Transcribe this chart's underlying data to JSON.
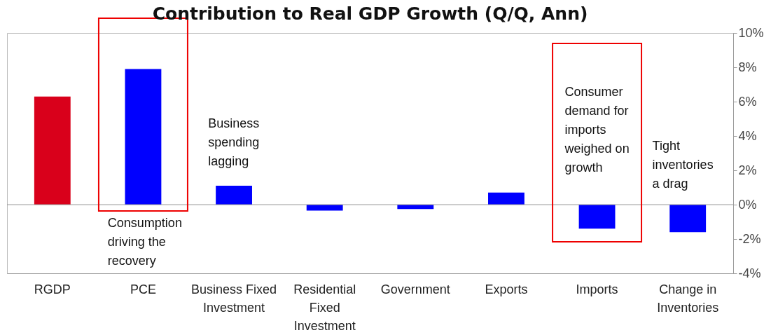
{
  "chart_data": {
    "type": "bar",
    "title": "Contribution to Real GDP Growth (Q/Q, Ann)",
    "categories": [
      "RGDP",
      "PCE",
      "Business Fixed Investment",
      "Residential Fixed Investment",
      "Government",
      "Exports",
      "Imports",
      "Change in Inventories"
    ],
    "values": [
      6.3,
      7.9,
      1.1,
      -0.35,
      -0.25,
      0.7,
      -1.4,
      -1.6
    ],
    "colors": [
      "#d9001b",
      "#0000ff",
      "#0000ff",
      "#0000ff",
      "#0000ff",
      "#0000ff",
      "#0000ff",
      "#0000ff"
    ],
    "ylim": [
      -4,
      10
    ],
    "yticks": [
      {
        "value": -4,
        "label": "-4%"
      },
      {
        "value": -2,
        "label": "-2%"
      },
      {
        "value": 0,
        "label": "0%"
      },
      {
        "value": 2,
        "label": "2%"
      },
      {
        "value": 4,
        "label": "4%"
      },
      {
        "value": 6,
        "label": "6%"
      },
      {
        "value": 8,
        "label": "8%"
      },
      {
        "value": 10,
        "label": "10%"
      }
    ],
    "ref_lines": [
      {
        "axis": "y",
        "value": 0,
        "color": "#999999"
      }
    ],
    "annotations": [
      "Consumption driving the recovery",
      "Business spending lagging",
      "Consumer demand for imports weighed on growth",
      "Tight inventories a drag"
    ],
    "grid": false
  }
}
